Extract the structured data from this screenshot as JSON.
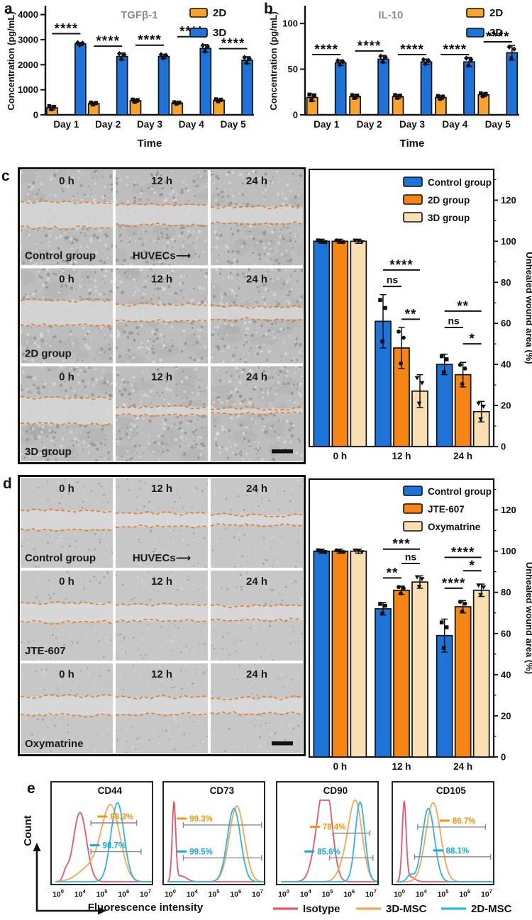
{
  "panel_a": {
    "letter": "a",
    "chart_index": 0
  },
  "panel_b": {
    "letter": "b",
    "chart_index": 1
  },
  "panel_c": {
    "letter": "c",
    "chart_index": 2,
    "images": {
      "texture": "dense",
      "annotation": "HUVECs⟶",
      "rows": [
        {
          "label": "Control group",
          "times": [
            "0 h",
            "12 h",
            "24 h"
          ],
          "gaps": [
            0.27,
            0.21,
            0.17
          ]
        },
        {
          "label": "2D group",
          "times": [
            "0 h",
            "12 h",
            "24 h"
          ],
          "gaps": [
            0.26,
            0.18,
            0.13
          ]
        },
        {
          "label": "3D group",
          "times": [
            "0 h",
            "12 h",
            "24 h"
          ],
          "gaps": [
            0.28,
            0.09,
            0.05
          ]
        }
      ]
    }
  },
  "panel_d": {
    "letter": "d",
    "chart_index": 3,
    "images": {
      "texture": "sparse",
      "annotation": "HUVECs⟶",
      "rows": [
        {
          "label": "Control group",
          "times": [
            "0 h",
            "12 h",
            "24 h"
          ],
          "gaps": [
            0.21,
            0.15,
            0.11
          ]
        },
        {
          "label": "JTE-607",
          "times": [
            "0 h",
            "12 h",
            "24 h"
          ],
          "gaps": [
            0.21,
            0.18,
            0.16
          ]
        },
        {
          "label": "Oxymatrine",
          "times": [
            "0 h",
            "12 h",
            "24 h"
          ],
          "gaps": [
            0.21,
            0.19,
            0.17
          ]
        }
      ]
    }
  },
  "panel_e": {
    "letter": "e",
    "chart_index": 4
  },
  "chart_data": [
    {
      "id": "tgfb1",
      "type": "bar",
      "title": "TGFβ-1",
      "ylabel": "Concentration (pg/mL)",
      "xlabel": "Time",
      "categories": [
        "Day 1",
        "Day 2",
        "Day 3",
        "Day 4",
        "Day 5"
      ],
      "yticks": [
        0,
        1000,
        2000,
        3000,
        4000
      ],
      "ylim": [
        0,
        4300
      ],
      "series": [
        {
          "name": "2D",
          "color": "#F7A32C",
          "marker": "square",
          "values": [
            280,
            450,
            560,
            470,
            580
          ],
          "errors": [
            80,
            50,
            60,
            40,
            50
          ]
        },
        {
          "name": "3D",
          "color": "#1E73D8",
          "marker": "diamond",
          "values": [
            2830,
            2330,
            2330,
            2650,
            2180
          ],
          "errors": [
            60,
            140,
            90,
            150,
            140
          ]
        }
      ],
      "sig": [
        {
          "cat": 0,
          "y": 3240,
          "label": "****"
        },
        {
          "cat": 1,
          "y": 2740,
          "label": "****"
        },
        {
          "cat": 2,
          "y": 2780,
          "label": "****"
        },
        {
          "cat": 3,
          "y": 3120,
          "label": "****"
        },
        {
          "cat": 4,
          "y": 2640,
          "label": "****"
        }
      ]
    },
    {
      "id": "il10",
      "type": "bar",
      "title": "IL-10",
      "ylabel": "Concentration (pg/mL)",
      "xlabel": "Time",
      "categories": [
        "Day 1",
        "Day 2",
        "Day 3",
        "Day 4",
        "Day 5"
      ],
      "yticks": [
        0,
        50,
        100
      ],
      "ylim": [
        0,
        118
      ],
      "series": [
        {
          "name": "2D",
          "color": "#F7A32C",
          "marker": "square",
          "values": [
            19,
            20,
            20,
            19,
            22
          ],
          "errors": [
            4,
            2,
            2,
            2,
            2
          ]
        },
        {
          "name": "3D",
          "color": "#1E73D8",
          "marker": "diamond",
          "values": [
            57,
            61,
            58,
            58,
            68
          ],
          "errors": [
            3,
            4,
            3,
            5,
            8
          ]
        }
      ],
      "sig": [
        {
          "cat": 0,
          "y": 66,
          "label": "****"
        },
        {
          "cat": 1,
          "y": 70,
          "label": "****"
        },
        {
          "cat": 2,
          "y": 66,
          "label": "****"
        },
        {
          "cat": 3,
          "y": 66,
          "label": "****"
        },
        {
          "cat": 4,
          "y": 80,
          "label": "****"
        }
      ]
    },
    {
      "id": "wound-c",
      "type": "bar",
      "ylabel": "Unhealed wound area (%)",
      "categories": [
        "0 h",
        "12 h",
        "24 h"
      ],
      "yticks": [
        0,
        20,
        40,
        60,
        80,
        100,
        120
      ],
      "ylim": [
        0,
        135
      ],
      "series": [
        {
          "name": "Control group",
          "color": "#1E73D8",
          "marker": "square",
          "values": [
            100,
            61,
            40
          ],
          "errors": [
            1,
            13,
            5
          ]
        },
        {
          "name": "2D group",
          "color": "#F58514",
          "marker": "circle",
          "values": [
            100,
            48,
            35
          ],
          "errors": [
            1,
            10,
            6
          ]
        },
        {
          "name": "3D group",
          "color": "#F9DFB2",
          "marker": "triangle",
          "values": [
            100,
            27,
            17
          ],
          "errors": [
            1,
            8,
            5
          ]
        }
      ],
      "sig": [
        {
          "cat": 1,
          "from": 0,
          "to": 2,
          "y": 86,
          "label": "****"
        },
        {
          "cat": 1,
          "from": 0,
          "to": 1,
          "y": 78,
          "label": "ns"
        },
        {
          "cat": 1,
          "from": 1,
          "to": 2,
          "y": 62,
          "label": "**"
        },
        {
          "cat": 2,
          "from": 0,
          "to": 2,
          "y": 66,
          "label": "**"
        },
        {
          "cat": 2,
          "from": 0,
          "to": 1,
          "y": 58,
          "label": "ns"
        },
        {
          "cat": 2,
          "from": 1,
          "to": 2,
          "y": 50,
          "label": "*"
        }
      ]
    },
    {
      "id": "wound-d",
      "type": "bar",
      "ylabel": "Unhealed wound area (%)",
      "categories": [
        "0 h",
        "12 h",
        "24 h"
      ],
      "yticks": [
        0,
        20,
        40,
        60,
        80,
        100,
        120
      ],
      "ylim": [
        0,
        135
      ],
      "series": [
        {
          "name": "Control group",
          "color": "#1E73D8",
          "marker": "square",
          "values": [
            100,
            72,
            59
          ],
          "errors": [
            1,
            3,
            8
          ]
        },
        {
          "name": "JTE-607",
          "color": "#F58514",
          "marker": "circle",
          "values": [
            100,
            81,
            73
          ],
          "errors": [
            1,
            2,
            3
          ]
        },
        {
          "name": "Oxymatrine",
          "color": "#F9DFB2",
          "marker": "triangle",
          "values": [
            100,
            85,
            81
          ],
          "errors": [
            1,
            3,
            3
          ]
        }
      ],
      "sig": [
        {
          "cat": 1,
          "from": 0,
          "to": 2,
          "y": 101,
          "label": "***"
        },
        {
          "cat": 1,
          "from": 1,
          "to": 2,
          "y": 94,
          "label": "ns"
        },
        {
          "cat": 1,
          "from": 0,
          "to": 1,
          "y": 87,
          "label": "**"
        },
        {
          "cat": 2,
          "from": 0,
          "to": 2,
          "y": 97,
          "label": "****"
        },
        {
          "cat": 2,
          "from": 1,
          "to": 2,
          "y": 90.5,
          "label": "*"
        },
        {
          "cat": 2,
          "from": 0,
          "to": 1,
          "y": 82,
          "label": "****"
        }
      ]
    },
    {
      "id": "flow",
      "type": "flow-histogram-set",
      "ylabel": "Count",
      "xlabel": "Fluorescence intensity",
      "xtick_exponents": [
        0,
        4,
        5,
        6,
        7
      ],
      "legend": [
        {
          "label": "Isotype",
          "color": "#E8566B"
        },
        {
          "label": "3D-MSC",
          "color": "#F6A554"
        },
        {
          "label": "2D-MSC",
          "color": "#2FB4E9"
        }
      ],
      "panels": [
        {
          "title": "CD44",
          "gates": [
            {
              "label": "88.3%",
              "color": "#F2970D",
              "x1": 1.5,
              "x2": 3.6,
              "y": 0.4,
              "label_x": 2.45
            },
            {
              "label": "98.7%",
              "color": "#12A9E8",
              "x1": 1.5,
              "x2": 3.8,
              "y": 0.68,
              "label_x": 2.1
            }
          ],
          "curves": [
            {
              "series": "Isotype",
              "color": "#E8566B",
              "peaks": [
                [
                  1.0,
                  0.3,
                  0.85
                ],
                [
                  0.35,
                  0.12,
                  0.1
                ]
              ]
            },
            {
              "series": "3D-MSC",
              "color": "#F6A554",
              "peaks": [
                [
                  2.42,
                  0.42,
                  0.9
                ],
                [
                  1.5,
                  0.55,
                  0.18
                ]
              ]
            },
            {
              "series": "2D-MSC",
              "color": "#2FB4E9",
              "peaks": [
                [
                  2.72,
                  0.3,
                  0.97
                ]
              ]
            }
          ]
        },
        {
          "title": "CD73",
          "gates": [
            {
              "label": "99.3%",
              "color": "#F2970D",
              "x1": 0.6,
              "x2": 4.19,
              "y": 0.42,
              "label_x": 0.95
            },
            {
              "label": "99.5%",
              "color": "#12A9E8",
              "x1": 0.6,
              "x2": 4.19,
              "y": 0.74,
              "label_x": 0.95
            }
          ],
          "curves": [
            {
              "series": "Isotype",
              "color": "#E8566B",
              "peaks": [
                [
                  0.17,
                  0.08,
                  0.96
                ],
                [
                  0.5,
                  0.25,
                  0.07
                ]
              ]
            },
            {
              "series": "3D-MSC",
              "color": "#F6A554",
              "peaks": [
                [
                  3.05,
                  0.34,
                  0.93
                ]
              ]
            },
            {
              "series": "2D-MSC",
              "color": "#2FB4E9",
              "peaks": [
                [
                  2.92,
                  0.3,
                  0.9
                ]
              ]
            }
          ]
        },
        {
          "title": "CD90",
          "gates": [
            {
              "label": "78.4%",
              "color": "#F2970D",
              "x1": 2.25,
              "x2": 3.95,
              "y": 0.5,
              "label_x": 1.85
            },
            {
              "label": "85.6%",
              "color": "#12A9E8",
              "x1": 2.1,
              "x2": 4.09,
              "y": 0.74,
              "label_x": 1.6
            }
          ],
          "curves": [
            {
              "series": "Isotype",
              "color": "#E8566B",
              "peaks": [
                [
                  1.72,
                  0.33,
                  0.7
                ],
                [
                  2.0,
                  0.27,
                  0.68
                ]
              ]
            },
            {
              "series": "3D-MSC",
              "color": "#F6A554",
              "peaks": [
                [
                  3.3,
                  0.3,
                  0.95
                ],
                [
                  2.8,
                  0.3,
                  0.2
                ]
              ]
            },
            {
              "series": "2D-MSC",
              "color": "#2FB4E9",
              "peaks": [
                [
                  3.5,
                  0.22,
                  0.98
                ]
              ]
            }
          ]
        },
        {
          "title": "CD105",
          "gates": [
            {
              "label": "86.7%",
              "color": "#F2970D",
              "x1": 0.84,
              "x2": 3.95,
              "y": 0.44,
              "label_x": 2.5
            },
            {
              "label": "88.1%",
              "color": "#12A9E8",
              "x1": 0.7,
              "x2": 4.19,
              "y": 0.73,
              "label_x": 2.2
            }
          ],
          "curves": [
            {
              "series": "Isotype",
              "color": "#E8566B",
              "peaks": [
                [
                  0.22,
                  0.09,
                  0.97
                ],
                [
                  0.5,
                  0.2,
                  0.06
                ]
              ]
            },
            {
              "series": "3D-MSC",
              "color": "#F6A554",
              "peaks": [
                [
                  1.55,
                  0.34,
                  0.97
                ]
              ]
            },
            {
              "series": "2D-MSC",
              "color": "#2FB4E9",
              "peaks": [
                [
                  1.33,
                  0.28,
                  0.9
                ],
                [
                  0.5,
                  0.15,
                  0.08
                ]
              ]
            }
          ]
        }
      ]
    }
  ]
}
